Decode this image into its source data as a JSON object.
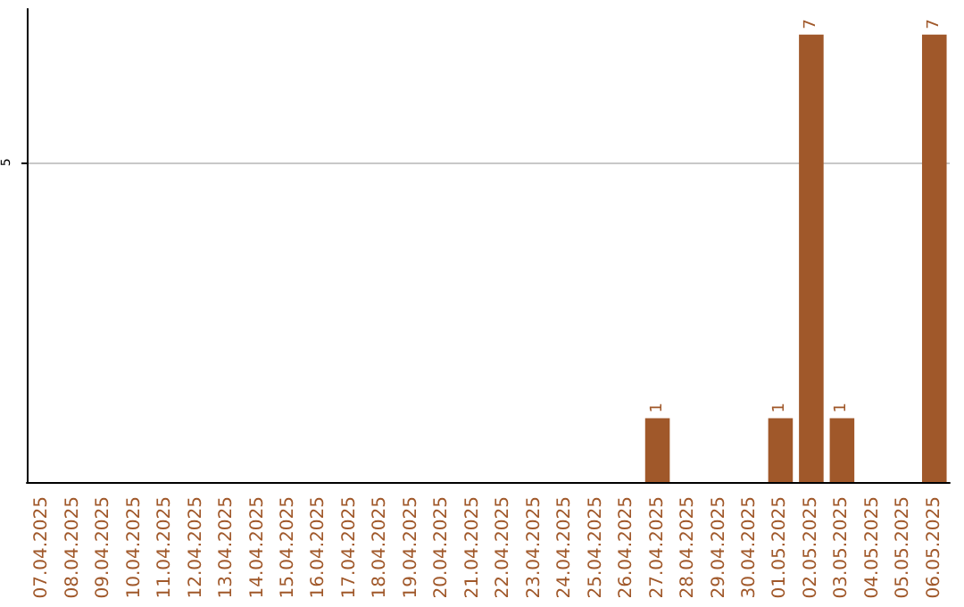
{
  "chart_data": {
    "type": "bar",
    "categories": [
      "07.04.2025",
      "08.04.2025",
      "09.04.2025",
      "10.04.2025",
      "11.04.2025",
      "12.04.2025",
      "13.04.2025",
      "14.04.2025",
      "15.04.2025",
      "16.04.2025",
      "17.04.2025",
      "18.04.2025",
      "19.04.2025",
      "20.04.2025",
      "21.04.2025",
      "22.04.2025",
      "23.04.2025",
      "24.04.2025",
      "25.04.2025",
      "26.04.2025",
      "27.04.2025",
      "28.04.2025",
      "29.04.2025",
      "30.04.2025",
      "01.05.2025",
      "02.05.2025",
      "03.05.2025",
      "04.05.2025",
      "05.05.2025",
      "06.05.2025"
    ],
    "values": [
      null,
      null,
      null,
      null,
      null,
      null,
      null,
      null,
      null,
      null,
      null,
      null,
      null,
      null,
      null,
      null,
      null,
      null,
      null,
      null,
      1,
      null,
      null,
      null,
      1,
      7,
      1,
      null,
      null,
      7
    ],
    "color": "#a0582a",
    "ylim": [
      0,
      7.4
    ],
    "yticks": [
      5
    ],
    "grid": "y",
    "data_labels": true
  }
}
